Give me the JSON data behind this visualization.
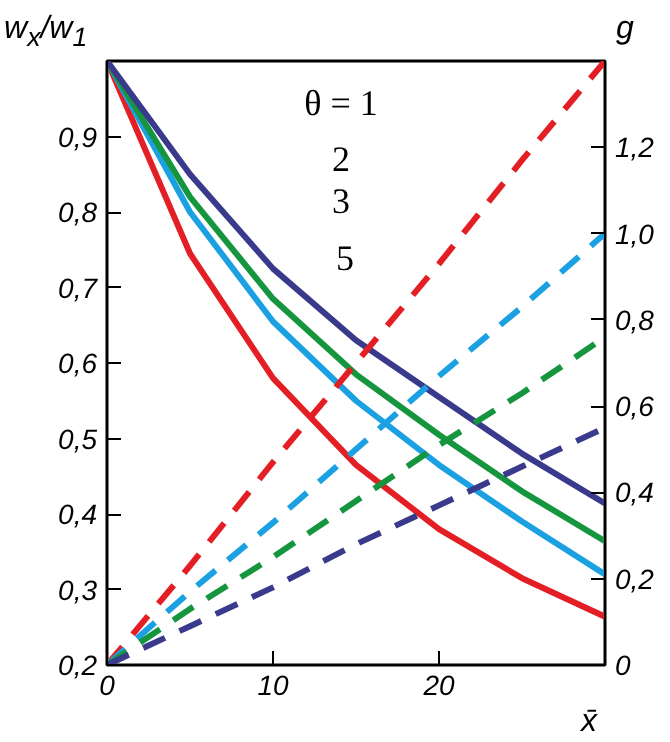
{
  "chart_data": {
    "type": "line",
    "xlabel": "x̄",
    "ylabel": "w$_{x}$/w$_{1}$",
    "y2label": "g",
    "x": [
      0,
      5,
      10,
      15,
      20,
      25,
      30
    ],
    "xlim": [
      0,
      30
    ],
    "xticks": [
      0,
      10,
      20
    ],
    "ylim": [
      0.2,
      1.0
    ],
    "yticks": [
      {
        "value": 0.2,
        "label": "0,2"
      },
      {
        "value": 0.3,
        "label": "0,3"
      },
      {
        "value": 0.4,
        "label": "0,4"
      },
      {
        "value": 0.5,
        "label": "0,5"
      },
      {
        "value": 0.6,
        "label": "0,6"
      },
      {
        "value": 0.7,
        "label": "0,7"
      },
      {
        "value": 0.8,
        "label": "0,8"
      },
      {
        "value": 0.9,
        "label": "0,9"
      }
    ],
    "y2lim": [
      0,
      1.4
    ],
    "y2ticks": [
      0,
      {
        "value": 0.2,
        "label": "0,2"
      },
      {
        "value": 0.4,
        "label": "0,4"
      },
      {
        "value": 0.6,
        "label": "0,6"
      },
      {
        "value": 0.8,
        "label": "0,8"
      },
      {
        "value": 1.0,
        "label": "1,0"
      },
      {
        "value": 1.2,
        "label": "1,2"
      }
    ],
    "grid": false,
    "series": [
      {
        "color": "#e31e24",
        "line_style": "solid",
        "values": [
          1.0,
          0.745,
          0.58,
          0.465,
          0.38,
          0.315,
          0.264
        ]
      },
      {
        "color": "#1ba1e2",
        "line_style": "solid",
        "values": [
          1.0,
          0.8,
          0.655,
          0.55,
          0.465,
          0.39,
          0.32
        ]
      },
      {
        "color": "#16953f",
        "line_style": "solid",
        "values": [
          1.0,
          0.82,
          0.685,
          0.585,
          0.505,
          0.43,
          0.364
        ]
      },
      {
        "color": "#3a3a8c",
        "line_style": "solid",
        "values": [
          1.0,
          0.85,
          0.725,
          0.63,
          0.555,
          0.48,
          0.414
        ]
      },
      {
        "color": "#e31e24",
        "line_style": "dashed",
        "axis": "y2",
        "values": [
          0,
          0.23,
          0.47,
          0.7,
          0.93,
          1.17,
          1.4
        ]
      },
      {
        "color": "#1ba1e2",
        "line_style": "dashed",
        "axis": "y2",
        "values": [
          0,
          0.17,
          0.33,
          0.5,
          0.67,
          0.83,
          1.0
        ]
      },
      {
        "color": "#16953f",
        "line_style": "dashed",
        "axis": "y2",
        "values": [
          0,
          0.13,
          0.25,
          0.38,
          0.51,
          0.63,
          0.76
        ]
      },
      {
        "color": "#3a3a8c",
        "line_style": "dashed",
        "axis": "y2",
        "values": [
          0,
          0.09,
          0.18,
          0.28,
          0.37,
          0.46,
          0.55
        ]
      }
    ],
    "annotations": [
      "θ = 1",
      "2",
      "3",
      "5"
    ]
  }
}
